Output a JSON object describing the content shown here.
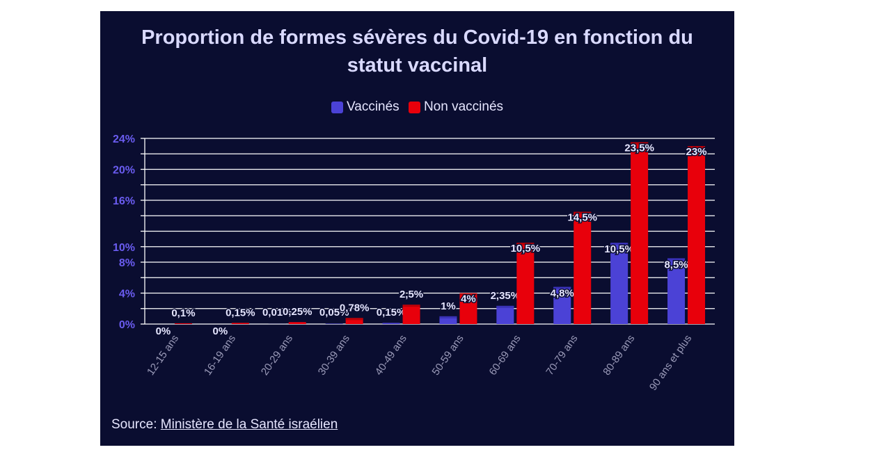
{
  "source": {
    "label": "Source: ",
    "link_text": "Ministère de la Santé israélien"
  },
  "colors": {
    "background": "#0a0d30",
    "vaccinated": "#4b42d6",
    "unvaccinated": "#e8000b",
    "axis_labels": "#6a5cf0",
    "grid": "#ffffff"
  },
  "chart_data": {
    "type": "bar",
    "title_lines": [
      "Proportion de formes sévères du Covid-19 en fonction du",
      "statut vaccinal"
    ],
    "categories": [
      "12-15 ans",
      "16-19 ans",
      "20-29 ans",
      "30-39 ans",
      "40-49 ans",
      "50-59 ans",
      "60-69 ans",
      "70-79 ans",
      "80-89 ans",
      "90 ans et plus"
    ],
    "series": [
      {
        "name": "Vaccinés",
        "color": "#4b42d6",
        "values": [
          0,
          0,
          0.01,
          0.05,
          0.15,
          1,
          2.35,
          4.8,
          10.5,
          8.5
        ],
        "labels": [
          "0%",
          "0%",
          "0,01%",
          "0,05%",
          "0,15%",
          "1%",
          "2,35%",
          "4,8%",
          "10,5%",
          "8,5%"
        ]
      },
      {
        "name": "Non vaccinés",
        "color": "#e8000b",
        "values": [
          0.1,
          0.15,
          0.25,
          0.78,
          2.5,
          4,
          10.5,
          14.5,
          23.5,
          23
        ],
        "labels": [
          "0,1%",
          "0,15%",
          "0,25%",
          "0,78%",
          "2,5%",
          "4%",
          "10,5%",
          "14,5%",
          "23,5%",
          "23%"
        ]
      }
    ],
    "yticks": [
      0,
      4,
      8,
      10,
      16,
      20,
      24
    ],
    "ytick_labels": [
      "0%",
      "4%",
      "8%",
      "10%",
      "16%",
      "20%",
      "24%"
    ],
    "gridlines": [
      0,
      2,
      4,
      6,
      8,
      10,
      12,
      14,
      16,
      18,
      20,
      22,
      24
    ],
    "ylim": [
      0,
      24
    ],
    "xlabel": "",
    "ylabel": "",
    "legend_position": "top-center",
    "grid": true
  }
}
